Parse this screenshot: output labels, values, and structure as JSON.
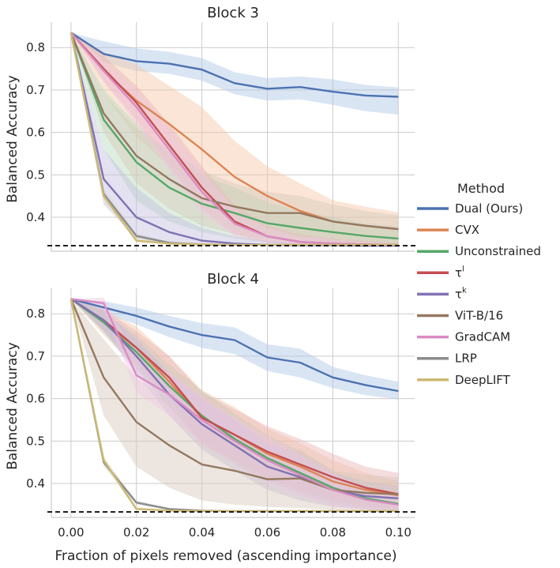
{
  "chart_data": {
    "type": "line",
    "xlabel": "Fraction of pixels removed (ascending importance)",
    "ylabel": "Balanced Accuracy",
    "xlim": [
      -0.006,
      0.105
    ],
    "ylim": [
      0.32,
      0.86
    ],
    "xticks": [
      0.0,
      0.02,
      0.04,
      0.06,
      0.08,
      0.1
    ],
    "xtick_labels": [
      "0.00",
      "0.02",
      "0.04",
      "0.06",
      "0.08",
      "0.10"
    ],
    "yticks": [
      0.4,
      0.5,
      0.6,
      0.7,
      0.8
    ],
    "ytick_labels": [
      "0.4",
      "0.5",
      "0.6",
      "0.7",
      "0.8"
    ],
    "chance_level": 0.333,
    "legend": {
      "title": "Method",
      "position": "right",
      "entries": [
        {
          "name": "Dual (Ours)",
          "color": "#4c72b0"
        },
        {
          "name": "CVX",
          "color": "#dd8452"
        },
        {
          "name": "Unconstrained",
          "color": "#55a868"
        },
        {
          "name": "τ",
          "sup": "l",
          "color": "#c44e52"
        },
        {
          "name": "τ",
          "sup": "k",
          "color": "#8172b3"
        },
        {
          "name": "ViT-B/16",
          "color": "#937860"
        },
        {
          "name": "GradCAM",
          "color": "#da8bc3"
        },
        {
          "name": "LRP",
          "color": "#8c8c8c"
        },
        {
          "name": "DeepLIFT",
          "color": "#ccb974"
        }
      ]
    },
    "x": [
      0.0,
      0.01,
      0.02,
      0.03,
      0.04,
      0.05,
      0.06,
      0.07,
      0.08,
      0.09,
      0.1
    ],
    "panels": [
      {
        "title": "Block 3",
        "series": [
          {
            "name": "Dual (Ours)",
            "color": "#4c72b0",
            "band": "#aec6e6",
            "values": [
              0.835,
              0.785,
              0.768,
              0.762,
              0.748,
              0.716,
              0.703,
              0.707,
              0.696,
              0.687,
              0.684
            ],
            "lower": [
              0.835,
              0.765,
              0.745,
              0.738,
              0.722,
              0.69,
              0.675,
              0.678,
              0.665,
              0.65,
              0.642
            ],
            "upper": [
              0.835,
              0.815,
              0.798,
              0.79,
              0.775,
              0.742,
              0.728,
              0.732,
              0.725,
              0.712,
              0.706
            ]
          },
          {
            "name": "CVX",
            "color": "#dd8452",
            "band": "#f5c6a5",
            "values": [
              0.835,
              0.745,
              0.675,
              0.62,
              0.56,
              0.495,
              0.45,
              0.415,
              0.39,
              0.38,
              0.372
            ],
            "lower": [
              0.835,
              0.69,
              0.59,
              0.52,
              0.46,
              0.41,
              0.375,
              0.35,
              0.34,
              0.335,
              0.335
            ],
            "upper": [
              0.835,
              0.79,
              0.76,
              0.71,
              0.66,
              0.58,
              0.52,
              0.48,
              0.44,
              0.425,
              0.412
            ]
          },
          {
            "name": "Unconstrained",
            "color": "#55a868",
            "band": "#b5dcbc",
            "values": [
              0.835,
              0.63,
              0.53,
              0.47,
              0.432,
              0.41,
              0.386,
              0.375,
              0.365,
              0.356,
              0.35
            ],
            "lower": [
              0.835,
              0.56,
              0.44,
              0.39,
              0.365,
              0.35,
              0.34,
              0.335,
              0.335,
              0.335,
              0.335
            ],
            "upper": [
              0.835,
              0.7,
              0.62,
              0.55,
              0.5,
              0.47,
              0.435,
              0.415,
              0.4,
              0.385,
              0.378
            ]
          },
          {
            "name": "τl",
            "color": "#c44e52",
            "band": "#e8b4b5",
            "values": [
              0.835,
              0.75,
              0.67,
              0.57,
              0.47,
              0.39,
              0.355,
              0.342,
              0.338,
              0.336,
              0.335
            ],
            "lower": [
              0.835,
              0.72,
              0.63,
              0.52,
              0.42,
              0.36,
              0.34,
              0.335,
              0.335,
              0.335,
              0.335
            ],
            "upper": [
              0.835,
              0.78,
              0.71,
              0.62,
              0.52,
              0.43,
              0.38,
              0.36,
              0.35,
              0.345,
              0.34
            ]
          },
          {
            "name": "τk",
            "color": "#8172b3",
            "band": "#c4bce0",
            "values": [
              0.835,
              0.49,
              0.4,
              0.365,
              0.345,
              0.338,
              0.335,
              0.334,
              0.334,
              0.333,
              0.333
            ],
            "lower": [
              0.835,
              0.43,
              0.35,
              0.335,
              0.333,
              0.333,
              0.333,
              0.333,
              0.333,
              0.333,
              0.333
            ],
            "upper": [
              0.835,
              0.56,
              0.47,
              0.41,
              0.375,
              0.355,
              0.345,
              0.34,
              0.338,
              0.336,
              0.335
            ]
          },
          {
            "name": "ViT-B/16",
            "color": "#937860",
            "band": "#d6c8ba",
            "values": [
              0.835,
              0.645,
              0.545,
              0.49,
              0.445,
              0.425,
              0.41,
              0.41,
              0.39,
              0.38,
              0.372
            ],
            "lower": [
              0.835,
              0.6,
              0.48,
              0.42,
              0.38,
              0.36,
              0.35,
              0.345,
              0.34,
              0.338,
              0.335
            ],
            "upper": [
              0.835,
              0.69,
              0.61,
              0.56,
              0.51,
              0.48,
              0.46,
              0.45,
              0.43,
              0.415,
              0.405
            ]
          },
          {
            "name": "GradCAM",
            "color": "#da8bc3",
            "band": "#f0c8e2",
            "values": [
              0.835,
              0.745,
              0.66,
              0.56,
              0.46,
              0.385,
              0.355,
              0.342,
              0.338,
              0.336,
              0.335
            ],
            "lower": [
              0.835,
              0.72,
              0.62,
              0.51,
              0.41,
              0.355,
              0.34,
              0.335,
              0.335,
              0.335,
              0.335
            ],
            "upper": [
              0.835,
              0.77,
              0.7,
              0.61,
              0.51,
              0.42,
              0.375,
              0.355,
              0.348,
              0.342,
              0.338
            ]
          },
          {
            "name": "LRP",
            "color": "#8c8c8c",
            "band": "#d0d0d0",
            "values": [
              0.835,
              0.455,
              0.356,
              0.34,
              0.336,
              0.335,
              0.335,
              0.335,
              0.335,
              0.335,
              0.335
            ],
            "lower": [
              0.835,
              0.445,
              0.35,
              0.338,
              0.335,
              0.335,
              0.335,
              0.335,
              0.335,
              0.335,
              0.335
            ],
            "upper": [
              0.835,
              0.465,
              0.362,
              0.342,
              0.337,
              0.336,
              0.336,
              0.336,
              0.336,
              0.336,
              0.336
            ]
          },
          {
            "name": "DeepLIFT",
            "color": "#ccb974",
            "band": "#ebe2bd",
            "values": [
              0.835,
              0.45,
              0.345,
              0.338,
              0.336,
              0.335,
              0.335,
              0.335,
              0.335,
              0.335,
              0.335
            ],
            "lower": [
              0.835,
              0.44,
              0.34,
              0.336,
              0.335,
              0.335,
              0.335,
              0.335,
              0.335,
              0.335,
              0.335
            ],
            "upper": [
              0.835,
              0.46,
              0.35,
              0.34,
              0.337,
              0.336,
              0.336,
              0.336,
              0.336,
              0.336,
              0.336
            ]
          }
        ]
      },
      {
        "title": "Block 4",
        "series": [
          {
            "name": "Dual (Ours)",
            "color": "#4c72b0",
            "band": "#aec6e6",
            "values": [
              0.835,
              0.815,
              0.795,
              0.77,
              0.75,
              0.738,
              0.697,
              0.685,
              0.65,
              0.632,
              0.618
            ],
            "lower": [
              0.835,
              0.8,
              0.775,
              0.745,
              0.72,
              0.705,
              0.665,
              0.65,
              0.625,
              0.608,
              0.598
            ],
            "upper": [
              0.835,
              0.83,
              0.815,
              0.795,
              0.778,
              0.768,
              0.728,
              0.718,
              0.675,
              0.655,
              0.64
            ]
          },
          {
            "name": "CVX",
            "color": "#dd8452",
            "band": "#f5c6a5",
            "values": [
              0.835,
              0.78,
              0.72,
              0.64,
              0.555,
              0.515,
              0.47,
              0.44,
              0.405,
              0.385,
              0.372
            ],
            "lower": [
              0.835,
              0.75,
              0.67,
              0.58,
              0.49,
              0.45,
              0.41,
              0.38,
              0.36,
              0.345,
              0.34
            ],
            "upper": [
              0.835,
              0.81,
              0.77,
              0.7,
              0.62,
              0.58,
              0.53,
              0.495,
              0.455,
              0.425,
              0.405
            ]
          },
          {
            "name": "Unconstrained",
            "color": "#55a868",
            "band": "#b5dcbc",
            "values": [
              0.835,
              0.78,
              0.71,
              0.63,
              0.56,
              0.505,
              0.46,
              0.425,
              0.39,
              0.365,
              0.352
            ],
            "lower": [
              0.835,
              0.755,
              0.67,
              0.58,
              0.5,
              0.445,
              0.405,
              0.375,
              0.35,
              0.34,
              0.335
            ],
            "upper": [
              0.835,
              0.805,
              0.75,
              0.68,
              0.62,
              0.565,
              0.515,
              0.475,
              0.43,
              0.395,
              0.375
            ]
          },
          {
            "name": "τl",
            "color": "#c44e52",
            "band": "#e8b4b5",
            "values": [
              0.835,
              0.785,
              0.72,
              0.65,
              0.555,
              0.515,
              0.475,
              0.445,
              0.415,
              0.39,
              0.375
            ],
            "lower": [
              0.835,
              0.76,
              0.68,
              0.6,
              0.495,
              0.455,
              0.415,
              0.385,
              0.36,
              0.345,
              0.34
            ],
            "upper": [
              0.835,
              0.81,
              0.76,
              0.7,
              0.615,
              0.575,
              0.535,
              0.505,
              0.47,
              0.44,
              0.425
            ]
          },
          {
            "name": "τk",
            "color": "#8172b3",
            "band": "#c4bce0",
            "values": [
              0.835,
              0.785,
              0.7,
              0.61,
              0.54,
              0.49,
              0.44,
              0.415,
              0.385,
              0.37,
              0.365
            ],
            "lower": [
              0.835,
              0.76,
              0.66,
              0.56,
              0.48,
              0.43,
              0.385,
              0.36,
              0.345,
              0.34,
              0.338
            ],
            "upper": [
              0.835,
              0.81,
              0.74,
              0.66,
              0.6,
              0.55,
              0.495,
              0.47,
              0.425,
              0.405,
              0.395
            ]
          },
          {
            "name": "ViT-B/16",
            "color": "#937860",
            "band": "#d6c8ba",
            "values": [
              0.835,
              0.65,
              0.545,
              0.49,
              0.445,
              0.43,
              0.41,
              0.412,
              0.385,
              0.378,
              0.375
            ],
            "lower": [
              0.835,
              0.56,
              0.44,
              0.39,
              0.36,
              0.35,
              0.345,
              0.342,
              0.338,
              0.336,
              0.335
            ],
            "upper": [
              0.835,
              0.74,
              0.65,
              0.59,
              0.53,
              0.51,
              0.475,
              0.48,
              0.43,
              0.42,
              0.415
            ]
          },
          {
            "name": "GradCAM",
            "color": "#da8bc3",
            "band": "#f0c8e2",
            "values": [
              0.835,
              0.825,
              0.655,
              0.61,
              0.55,
              0.5,
              0.455,
              0.42,
              0.385,
              0.362,
              0.35
            ],
            "lower": [
              0.835,
              0.81,
              0.615,
              0.56,
              0.495,
              0.445,
              0.4,
              0.37,
              0.345,
              0.338,
              0.335
            ],
            "upper": [
              0.835,
              0.838,
              0.695,
              0.66,
              0.605,
              0.555,
              0.51,
              0.47,
              0.425,
              0.39,
              0.37
            ]
          },
          {
            "name": "LRP",
            "color": "#8c8c8c",
            "band": "#d0d0d0",
            "values": [
              0.835,
              0.45,
              0.355,
              0.34,
              0.336,
              0.335,
              0.335,
              0.335,
              0.335,
              0.335,
              0.335
            ],
            "lower": [
              0.835,
              0.44,
              0.35,
              0.338,
              0.335,
              0.335,
              0.335,
              0.335,
              0.335,
              0.335,
              0.335
            ],
            "upper": [
              0.835,
              0.46,
              0.36,
              0.342,
              0.337,
              0.336,
              0.336,
              0.336,
              0.336,
              0.336,
              0.336
            ]
          },
          {
            "name": "DeepLIFT",
            "color": "#ccb974",
            "band": "#ebe2bd",
            "values": [
              0.835,
              0.455,
              0.34,
              0.336,
              0.335,
              0.335,
              0.335,
              0.335,
              0.335,
              0.335,
              0.335
            ],
            "lower": [
              0.835,
              0.445,
              0.336,
              0.335,
              0.335,
              0.335,
              0.335,
              0.335,
              0.335,
              0.335,
              0.335
            ],
            "upper": [
              0.835,
              0.465,
              0.345,
              0.338,
              0.336,
              0.336,
              0.336,
              0.336,
              0.336,
              0.336,
              0.336
            ]
          }
        ]
      }
    ]
  }
}
